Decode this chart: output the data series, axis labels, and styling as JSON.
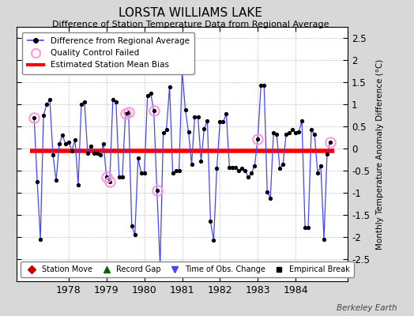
{
  "title": "LORSTA WILLIAMS LAKE",
  "subtitle": "Difference of Station Temperature Data from Regional Average",
  "ylabel": "Monthly Temperature Anomaly Difference (°C)",
  "xlabel_years": [
    1978,
    1979,
    1980,
    1981,
    1982,
    1983,
    1984
  ],
  "ylim": [
    -3,
    2.75
  ],
  "yticks": [
    -2.5,
    -2,
    -1.5,
    -1,
    -0.5,
    0,
    0.5,
    1,
    1.5,
    2,
    2.5
  ],
  "bias": -0.05,
  "line_color": "#4444ff",
  "line_color_light": "#aaaaff",
  "bias_color": "#ff0000",
  "qc_color": "#ff99dd",
  "background_color": "#d8d8d8",
  "plot_bg_color": "#ffffff",
  "watermark": "Berkeley Earth",
  "monthly_x": [
    1977.083,
    1977.167,
    1977.25,
    1977.333,
    1977.417,
    1977.5,
    1977.583,
    1977.667,
    1977.75,
    1977.833,
    1977.917,
    1978.0,
    1978.083,
    1978.167,
    1978.25,
    1978.333,
    1978.417,
    1978.5,
    1978.583,
    1978.667,
    1978.75,
    1978.833,
    1978.917,
    1979.0,
    1979.083,
    1979.167,
    1979.25,
    1979.333,
    1979.417,
    1979.5,
    1979.583,
    1979.667,
    1979.75,
    1979.833,
    1979.917,
    1980.0,
    1980.083,
    1980.167,
    1980.25,
    1980.333,
    1980.417,
    1980.5,
    1980.583,
    1980.667,
    1980.75,
    1980.833,
    1980.917,
    1981.0,
    1981.083,
    1981.167,
    1981.25,
    1981.333,
    1981.417,
    1981.5,
    1981.583,
    1981.667,
    1981.75,
    1981.833,
    1981.917,
    1982.0,
    1982.083,
    1982.167,
    1982.25,
    1982.333,
    1982.417,
    1982.5,
    1982.583,
    1982.667,
    1982.75,
    1982.833,
    1982.917,
    1983.0,
    1983.083,
    1983.167,
    1983.25,
    1983.333,
    1983.417,
    1983.5,
    1983.583,
    1983.667,
    1983.75,
    1983.833,
    1983.917,
    1984.0,
    1984.083,
    1984.167,
    1984.25,
    1984.333,
    1984.417,
    1984.5,
    1984.583,
    1984.667,
    1984.75,
    1984.833,
    1984.917
  ],
  "monthly_y": [
    0.7,
    -0.75,
    -2.05,
    0.75,
    1.0,
    1.1,
    -0.15,
    -0.72,
    0.1,
    0.3,
    0.1,
    0.15,
    -0.05,
    0.2,
    -0.82,
    1.0,
    1.05,
    -0.1,
    0.05,
    -0.1,
    -0.1,
    -0.15,
    0.1,
    -0.65,
    -0.75,
    1.1,
    1.05,
    -0.65,
    -0.65,
    0.78,
    0.82,
    -1.75,
    -1.95,
    -0.22,
    -0.55,
    -0.55,
    1.2,
    1.25,
    0.85,
    -0.95,
    -2.65,
    0.35,
    0.42,
    1.4,
    -0.55,
    -0.5,
    -0.5,
    1.75,
    0.88,
    0.38,
    -0.35,
    0.72,
    0.72,
    -0.28,
    0.45,
    0.62,
    -1.65,
    -2.08,
    -0.45,
    0.6,
    0.6,
    0.78,
    -0.42,
    -0.42,
    -0.42,
    -0.5,
    -0.45,
    -0.5,
    -0.65,
    -0.55,
    -0.4,
    0.22,
    1.42,
    1.42,
    -0.98,
    -1.12,
    0.35,
    0.32,
    -0.45,
    -0.35,
    0.32,
    0.35,
    0.42,
    0.35,
    0.38,
    0.62,
    -1.78,
    -1.78,
    0.42,
    0.32,
    -0.55,
    -0.4,
    -2.05,
    -0.12,
    0.15
  ],
  "qc_failed_x": [
    1977.083,
    1979.0,
    1979.083,
    1979.5,
    1979.583,
    1980.25,
    1980.333,
    1983.0,
    1984.917
  ],
  "qc_failed_y": [
    0.7,
    -0.65,
    -0.75,
    0.78,
    0.82,
    0.85,
    -0.95,
    0.22,
    0.15
  ]
}
